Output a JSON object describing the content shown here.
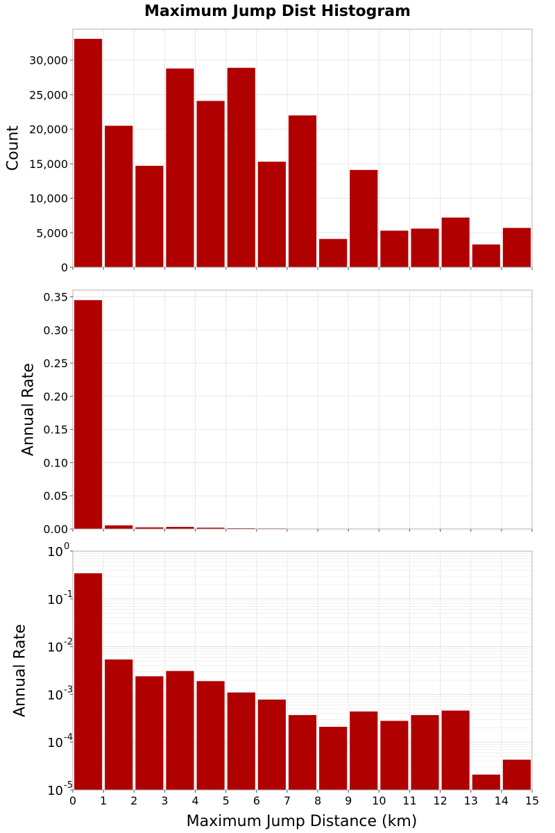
{
  "chart_data": {
    "type": "bar",
    "title": "Maximum Jump Dist Histogram",
    "xlabel": "Maximum Jump Distance (km)",
    "xlim": [
      0,
      15
    ],
    "x_ticks": [
      "0",
      "1",
      "2",
      "3",
      "4",
      "5",
      "6",
      "7",
      "8",
      "9",
      "10",
      "11",
      "12",
      "13",
      "14",
      "15"
    ],
    "bar_color": "#b00000",
    "bin_starts": [
      0,
      1,
      2,
      3,
      4,
      5,
      6,
      7,
      8,
      9,
      10,
      11,
      12,
      13,
      14
    ],
    "bin_width": 1,
    "panels": [
      {
        "ylabel": "Count",
        "yscale": "linear",
        "ylim": [
          0,
          34500
        ],
        "y_ticks": [
          {
            "value": 0,
            "label": "0"
          },
          {
            "value": 5000,
            "label": "5,000"
          },
          {
            "value": 10000,
            "label": "10,000"
          },
          {
            "value": 15000,
            "label": "15,000"
          },
          {
            "value": 20000,
            "label": "20,000"
          },
          {
            "value": 25000,
            "label": "25,000"
          },
          {
            "value": 30000,
            "label": "30,000"
          }
        ],
        "values": [
          33100,
          20500,
          14700,
          28800,
          24100,
          28900,
          15300,
          22000,
          4100,
          14100,
          5300,
          5600,
          7200,
          3300,
          5700
        ]
      },
      {
        "ylabel": "Annual Rate",
        "yscale": "linear",
        "ylim": [
          0,
          0.36
        ],
        "y_ticks": [
          {
            "value": 0.0,
            "label": "0.00"
          },
          {
            "value": 0.05,
            "label": "0.05"
          },
          {
            "value": 0.1,
            "label": "0.10"
          },
          {
            "value": 0.15,
            "label": "0.15"
          },
          {
            "value": 0.2,
            "label": "0.20"
          },
          {
            "value": 0.25,
            "label": "0.25"
          },
          {
            "value": 0.3,
            "label": "0.30"
          },
          {
            "value": 0.35,
            "label": "0.35"
          }
        ],
        "values": [
          0.345,
          0.0054,
          0.0024,
          0.0031,
          0.0019,
          0.0011,
          0.00078,
          0.00037,
          0.00021,
          0.00044,
          0.00028,
          0.00037,
          0.00046,
          2.1e-05,
          4.3e-05
        ]
      },
      {
        "ylabel": "Annual Rate",
        "yscale": "log",
        "ylim": [
          1e-05,
          1
        ],
        "y_ticks": [
          {
            "value": 1e-05,
            "base": "10",
            "exp": "-5"
          },
          {
            "value": 0.0001,
            "base": "10",
            "exp": "-4"
          },
          {
            "value": 0.001,
            "base": "10",
            "exp": "-3"
          },
          {
            "value": 0.01,
            "base": "10",
            "exp": "-2"
          },
          {
            "value": 0.1,
            "base": "10",
            "exp": "-1"
          },
          {
            "value": 1,
            "base": "10",
            "exp": "0"
          }
        ],
        "values": [
          0.345,
          0.0054,
          0.0024,
          0.0031,
          0.0019,
          0.0011,
          0.00078,
          0.00037,
          0.00021,
          0.00044,
          0.00028,
          0.00037,
          0.00046,
          2.1e-05,
          4.3e-05
        ]
      }
    ]
  }
}
